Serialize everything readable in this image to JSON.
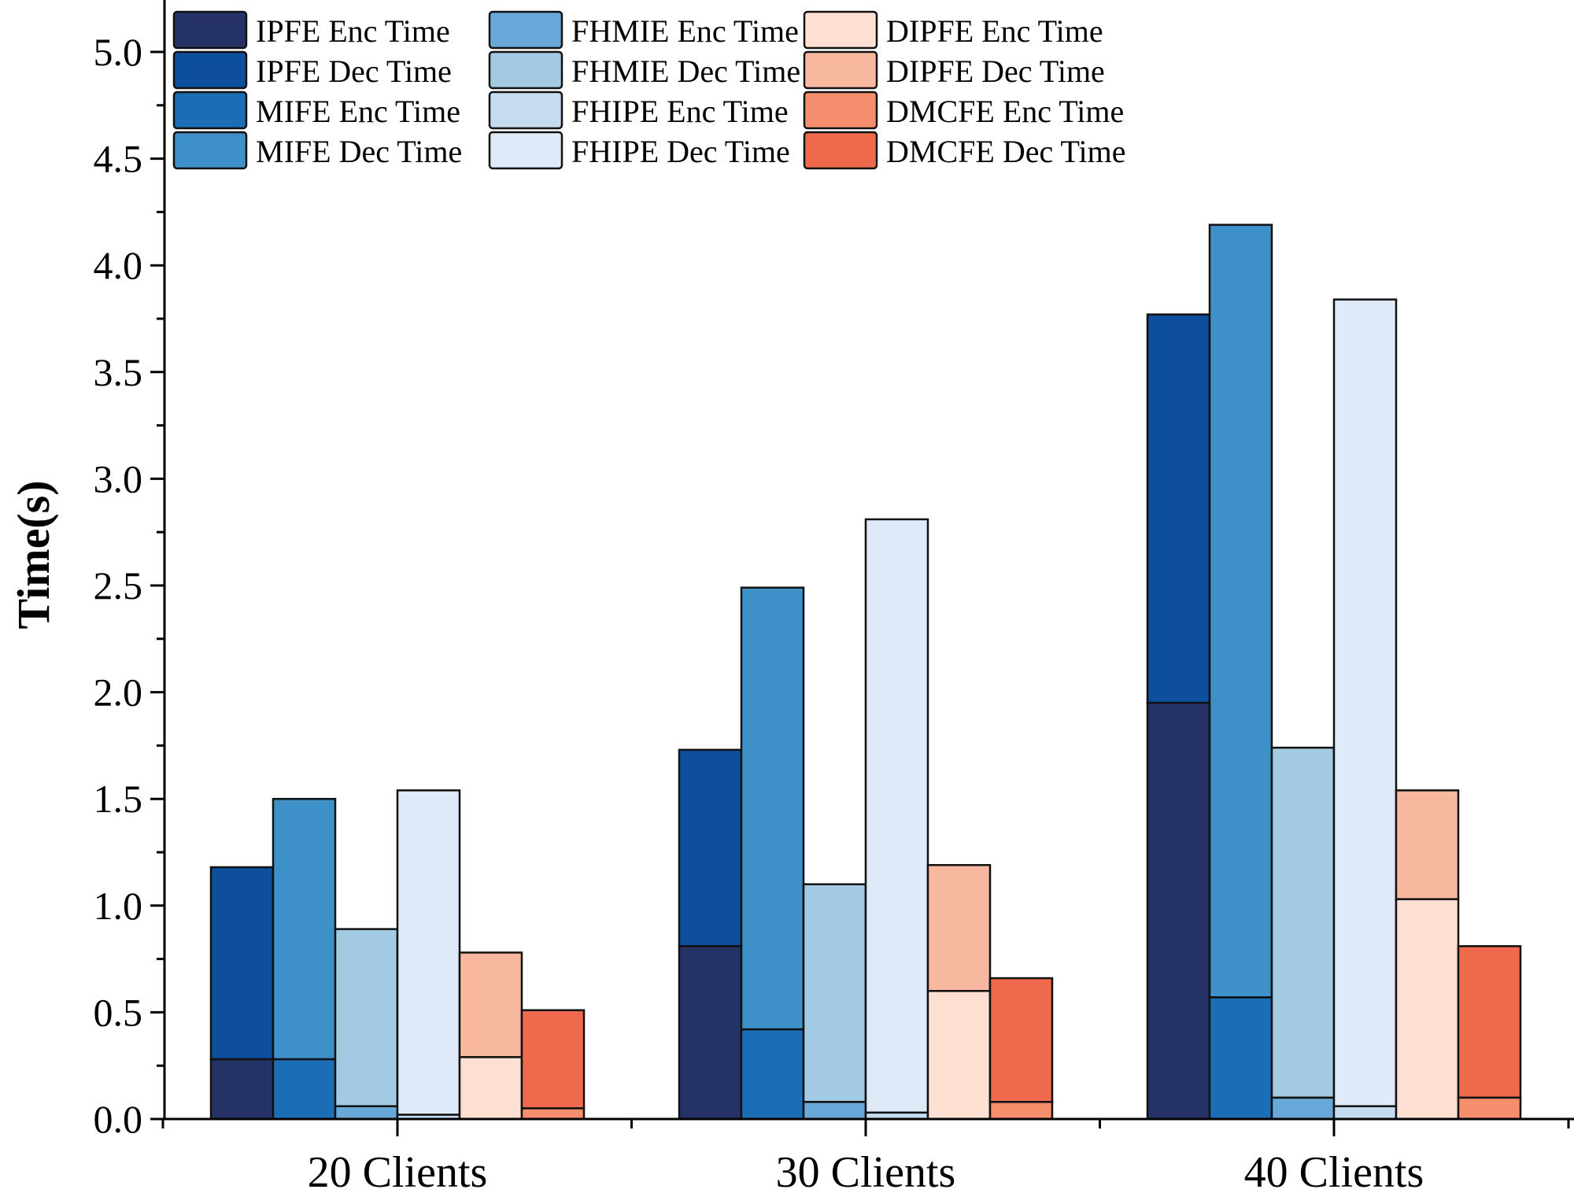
{
  "chart_data": {
    "type": "bar",
    "subtype": "grouped-stacked",
    "title": "",
    "xlabel": "",
    "ylabel": "Time(s)",
    "ylim": [
      0,
      5.25
    ],
    "yticks": [
      "0.0",
      "0.5",
      "1.0",
      "1.5",
      "2.0",
      "2.5",
      "3.0",
      "3.5",
      "4.0",
      "4.5",
      "5.0"
    ],
    "ytick_values": [
      0,
      0.5,
      1.0,
      1.5,
      2.0,
      2.5,
      3.0,
      3.5,
      4.0,
      4.5,
      5.0
    ],
    "grid": false,
    "legend_position": "top-left",
    "categories": [
      "20 Clients",
      "30 Clients",
      "40 Clients"
    ],
    "series": [
      {
        "name": "IPFE",
        "enc_label": "IPFE Enc Time",
        "dec_label": "IPFE Dec Time",
        "enc": [
          0.28,
          0.81,
          1.95
        ],
        "total": [
          1.18,
          1.73,
          3.77
        ],
        "enc_color": "#243265",
        "dec_color": "#0e4f9d"
      },
      {
        "name": "MIFE",
        "enc_label": "MIFE Enc Time",
        "dec_label": "MIFE Dec Time",
        "enc": [
          0.28,
          0.42,
          0.57
        ],
        "total": [
          1.5,
          2.49,
          4.19
        ],
        "enc_color": "#1b6db5",
        "dec_color": "#3e90c9"
      },
      {
        "name": "FHMIE",
        "enc_label": "FHMIE Enc Time",
        "dec_label": "FHMIE Dec Time",
        "enc": [
          0.06,
          0.08,
          0.1
        ],
        "total": [
          0.89,
          1.1,
          1.74
        ],
        "enc_color": "#67a8d8",
        "dec_color": "#a2cbe3"
      },
      {
        "name": "FHIPE",
        "enc_label": "FHIPE Enc Time",
        "dec_label": "FHIPE Dec Time",
        "enc": [
          0.02,
          0.03,
          0.06
        ],
        "total": [
          1.54,
          2.81,
          3.84
        ],
        "enc_color": "#c4dbf0",
        "dec_color": "#deeaf7"
      },
      {
        "name": "DIPFE",
        "enc_label": "DIPFE Enc Time",
        "dec_label": "DIPFE Dec Time",
        "enc": [
          0.29,
          0.6,
          1.03
        ],
        "total": [
          0.78,
          1.19,
          1.54
        ],
        "enc_color": "#fde0d2",
        "dec_color": "#f8b79f"
      },
      {
        "name": "DMCFE",
        "enc_label": "DMCFE Enc Time",
        "dec_label": "DMCFE Dec Time",
        "enc": [
          0.05,
          0.08,
          0.1
        ],
        "total": [
          0.51,
          0.66,
          0.81
        ],
        "enc_color": "#f48e6d",
        "dec_color": "#ef6a4c"
      }
    ]
  }
}
